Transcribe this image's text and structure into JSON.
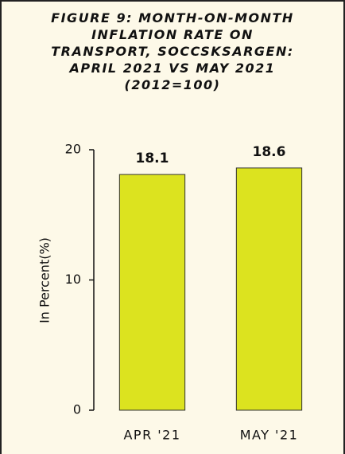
{
  "chart_data": {
    "type": "bar",
    "title": "FIGURE 9: MONTH-ON-MONTH INFLATION RATE ON TRANSPORT, SOCCSKSARGEN: APRIL 2021 VS MAY 2021 (2012=100)",
    "y_label": "In Percent(%)",
    "categories": [
      "APR '21",
      "MAY '21"
    ],
    "values": [
      18.1,
      18.6
    ],
    "color": "#dce31f",
    "ylim": [
      0,
      20
    ],
    "yticks": [
      0,
      10,
      20
    ],
    "grid": false
  }
}
